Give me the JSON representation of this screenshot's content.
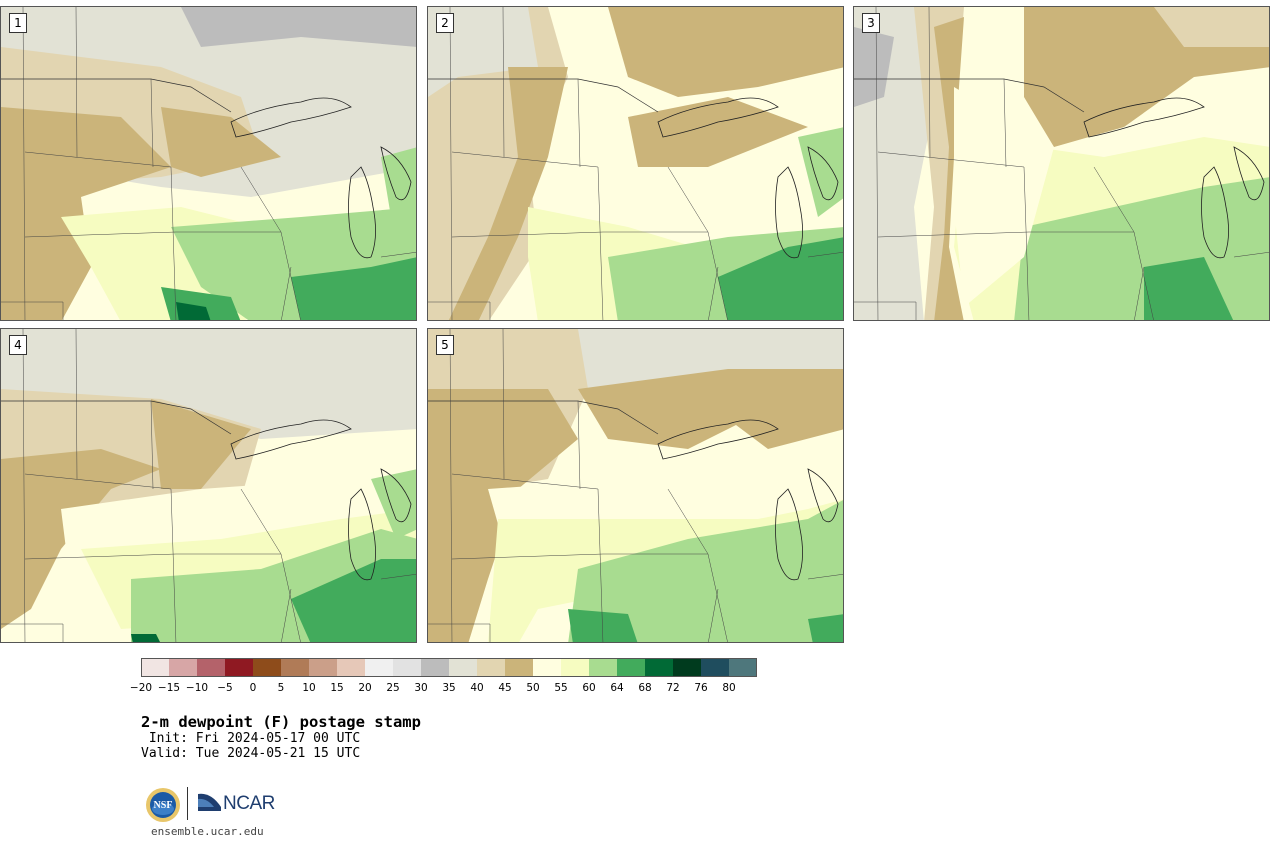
{
  "panels": [
    {
      "label": "1"
    },
    {
      "label": "2"
    },
    {
      "label": "3"
    },
    {
      "label": "4"
    },
    {
      "label": "5"
    }
  ],
  "colorbar": {
    "colors": [
      "#f1e5e3",
      "#d7a6a6",
      "#b4626a",
      "#8f1922",
      "#8e4c1b",
      "#b07b57",
      "#cb9f89",
      "#e6c8b8",
      "#f0f0f0",
      "#e2e2e2",
      "#bcbcbc",
      "#e2e2d5",
      "#e2d5b1",
      "#cbb47a",
      "#fffee0",
      "#f6fcc1",
      "#a8dc90",
      "#42ab5c",
      "#016a36",
      "#003b1e",
      "#1f4d5e",
      "#4e777c"
    ],
    "ticks": [
      "−20",
      "−15",
      "−10",
      "−5",
      "0",
      "5",
      "10",
      "15",
      "20",
      "25",
      "30",
      "35",
      "40",
      "45",
      "50",
      "55",
      "60",
      "64",
      "68",
      "72",
      "76",
      "80"
    ]
  },
  "title": "2-m dewpoint (F) postage stamp",
  "init_line": " Init: Fri 2024-05-17 00 UTC",
  "valid_line": "Valid: Tue 2024-05-21 15 UTC",
  "logos": {
    "nsf": "NSF",
    "ncar": "NCAR"
  },
  "website": "ensemble.ucar.edu"
}
